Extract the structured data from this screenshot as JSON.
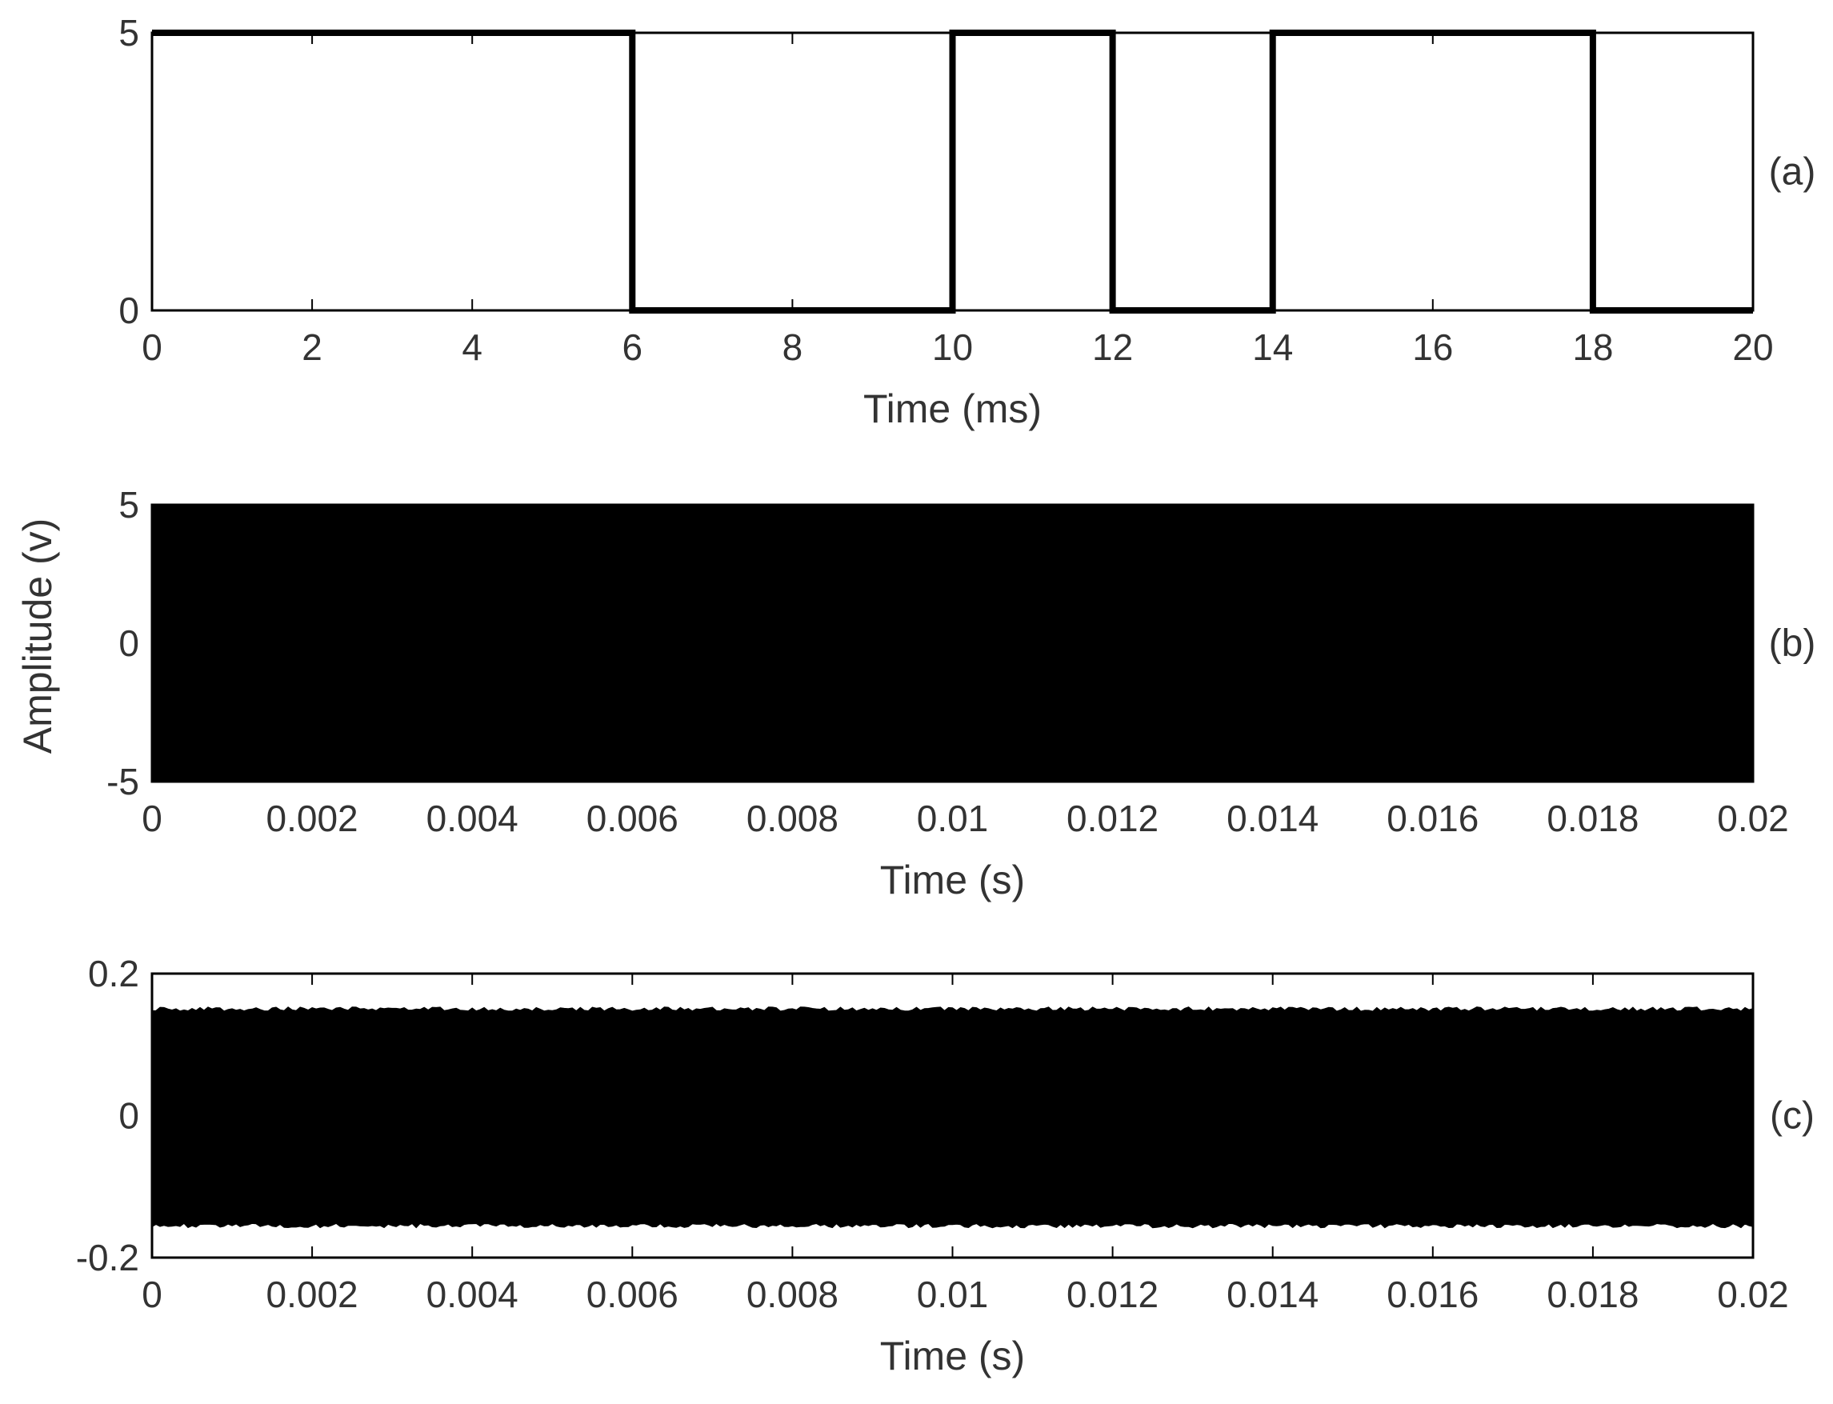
{
  "figure": {
    "shared_ylabel": "Amplitude (v)"
  },
  "chart_data": [
    {
      "type": "line",
      "panel_label": "(a)",
      "xlabel": "Time (ms)",
      "xlim": [
        0,
        20
      ],
      "ylim": [
        0,
        5
      ],
      "xticks": [
        0,
        2,
        4,
        6,
        8,
        10,
        12,
        14,
        16,
        18,
        20
      ],
      "xtick_labels": [
        "0",
        "2",
        "4",
        "6",
        "8",
        "10",
        "12",
        "14",
        "16",
        "18",
        "20"
      ],
      "yticks": [
        0,
        5
      ],
      "ytick_labels": [
        "0",
        "5"
      ],
      "series": [
        {
          "x": [
            0,
            6,
            6,
            10,
            10,
            12,
            12,
            14,
            14,
            18,
            18,
            20
          ],
          "y": [
            5,
            5,
            0,
            0,
            5,
            5,
            0,
            0,
            5,
            5,
            0,
            0
          ]
        }
      ],
      "color": "#000000"
    },
    {
      "type": "area",
      "panel_label": "(b)",
      "xlabel": "Time (s)",
      "xlim": [
        0,
        0.02
      ],
      "ylim": [
        -5,
        5
      ],
      "xticks": [
        0,
        0.002,
        0.004,
        0.006,
        0.008,
        0.01,
        0.012,
        0.014,
        0.016,
        0.018,
        0.02
      ],
      "xtick_labels": [
        "0",
        "0.002",
        "0.004",
        "0.006",
        "0.008",
        "0.01",
        "0.012",
        "0.014",
        "0.016",
        "0.018",
        "0.02"
      ],
      "yticks": [
        -5,
        0,
        5
      ],
      "ytick_labels": [
        "-5",
        "0",
        "5"
      ],
      "envelope": {
        "upper": 4.95,
        "lower": -4.95
      },
      "color": "#000000"
    },
    {
      "type": "area",
      "panel_label": "(c)",
      "xlabel": "Time (s)",
      "xlim": [
        0,
        0.02
      ],
      "ylim": [
        -0.2,
        0.2
      ],
      "xticks": [
        0,
        0.002,
        0.004,
        0.006,
        0.008,
        0.01,
        0.012,
        0.014,
        0.016,
        0.018,
        0.02
      ],
      "xtick_labels": [
        "0",
        "0.002",
        "0.004",
        "0.006",
        "0.008",
        "0.01",
        "0.012",
        "0.014",
        "0.016",
        "0.018",
        "0.02"
      ],
      "yticks": [
        -0.2,
        0,
        0.2
      ],
      "ytick_labels": [
        "-0.2",
        "0",
        "0.2"
      ],
      "envelope": {
        "upper": 0.15,
        "lower": -0.155,
        "jitter": 0.006
      },
      "color": "#000000"
    }
  ]
}
